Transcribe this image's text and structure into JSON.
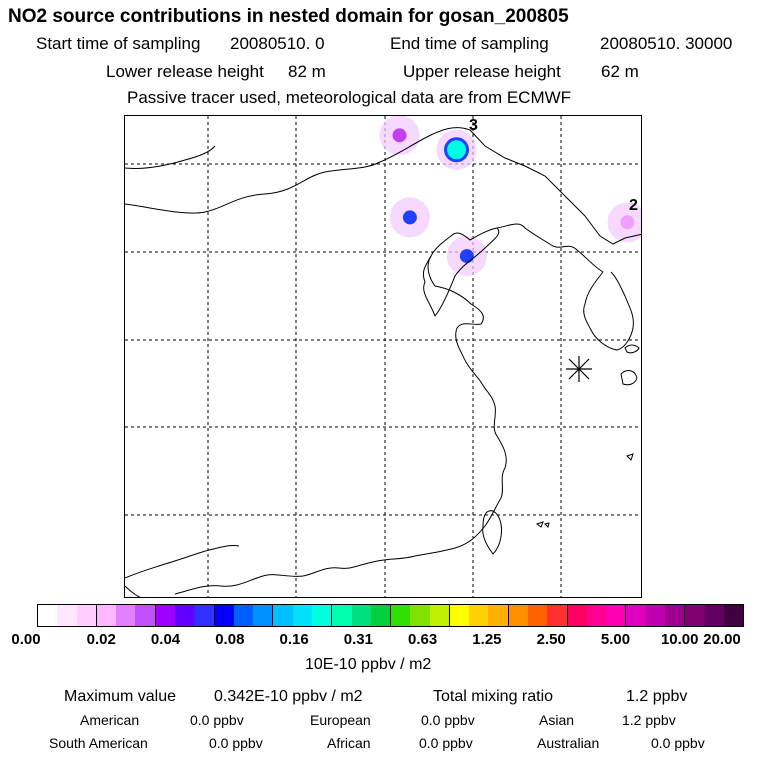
{
  "title": "NO2 source contributions in nested domain for gosan_200805",
  "sampling": {
    "start_label": "Start time of sampling",
    "start_value": "20080510.     0",
    "end_label": "End time of sampling",
    "end_value": "20080510. 30000"
  },
  "release": {
    "lower_label": "Lower release height",
    "lower_value": "82 m",
    "upper_label": "Upper release height",
    "upper_value": "62 m"
  },
  "note": "Passive tracer used, meteorological data are from ECMWF",
  "map": {
    "grid_labels": [
      "3",
      "2"
    ],
    "blobs": [
      {
        "lon_frac": 0.53,
        "lat_frac": 0.04,
        "level": "0.04"
      },
      {
        "lon_frac": 0.64,
        "lat_frac": 0.07,
        "level": "0.31"
      },
      {
        "lon_frac": 0.55,
        "lat_frac": 0.21,
        "level": "0.16"
      },
      {
        "lon_frac": 0.66,
        "lat_frac": 0.29,
        "level": "0.16"
      },
      {
        "lon_frac": 0.97,
        "lat_frac": 0.22,
        "level": "0.02"
      }
    ]
  },
  "colorbar": {
    "colors": [
      "#ffffff",
      "#ffe8ff",
      "#ffd0ff",
      "#ffb8ff",
      "#e080ff",
      "#c050ff",
      "#a000ff",
      "#6000ff",
      "#3030ff",
      "#0000ff",
      "#0060ff",
      "#0090ff",
      "#00c0ff",
      "#00e0ff",
      "#00ffdd",
      "#00ffb0",
      "#00e080",
      "#00d040",
      "#30e000",
      "#80e000",
      "#c0f000",
      "#ffff00",
      "#ffd000",
      "#ffb000",
      "#ff9000",
      "#ff6000",
      "#ff3030",
      "#ff0060",
      "#ff0090",
      "#ff00b0",
      "#e000c0",
      "#c000b0",
      "#a00090",
      "#800070",
      "#600060",
      "#400040"
    ],
    "ticks": [
      "0.00",
      "0.02",
      "0.04",
      "0.08",
      "0.16",
      "0.31",
      "0.63",
      "1.25",
      "2.50",
      "5.00",
      "10.00",
      "20.00"
    ],
    "unit": "10E-10 ppbv / m2"
  },
  "stats": {
    "max_label": "Maximum value",
    "max_value": "0.342E-10 ppbv / m2",
    "total_label": "Total mixing ratio",
    "total_value": "1.2 ppbv",
    "regions": [
      {
        "name": "American",
        "value": "0.0 ppbv"
      },
      {
        "name": "European",
        "value": "0.0 ppbv"
      },
      {
        "name": "Asian",
        "value": "1.2 ppbv"
      },
      {
        "name": "South American",
        "value": "0.0 ppbv"
      },
      {
        "name": "African",
        "value": "0.0 ppbv"
      },
      {
        "name": "Australian",
        "value": "0.0 ppbv"
      }
    ]
  }
}
